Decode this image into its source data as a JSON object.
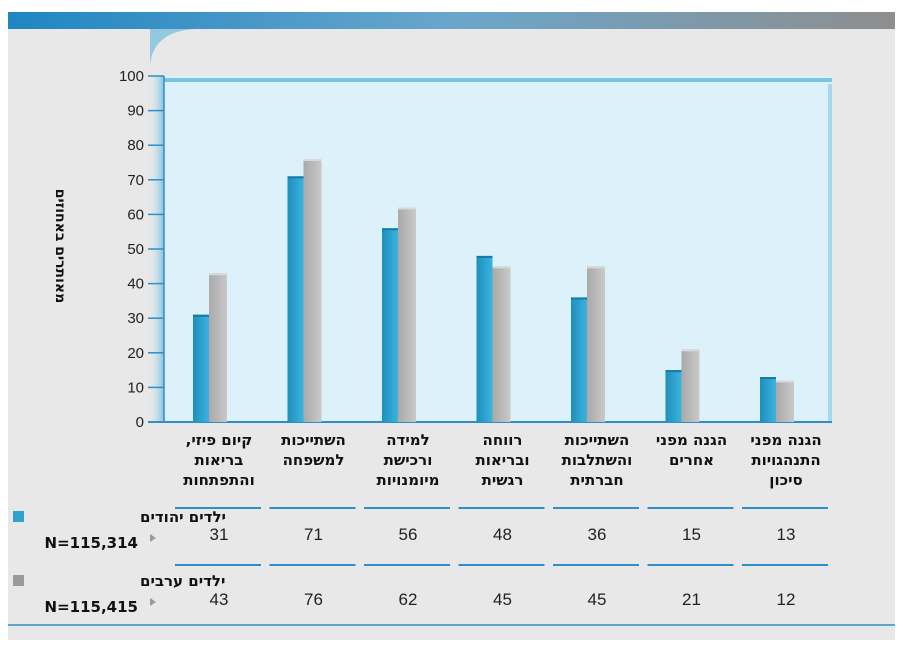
{
  "colors": {
    "jewish": "#2da3cc",
    "arab": "#b8b8b8",
    "top_band_start": "#1f86c2",
    "top_band_end": "#909090",
    "panel_bg": "#e8e8e8",
    "plot_bg": "#dcf1fa",
    "rule": "#2f8ec8"
  },
  "chart_data": {
    "type": "bar",
    "ylabel": "מאותרים באחוזים",
    "ylim": [
      0,
      100
    ],
    "yticks": [
      0,
      10,
      20,
      30,
      40,
      50,
      60,
      70,
      80,
      90,
      100
    ],
    "categories": [
      [
        "קיום פיזי,",
        "בריאות",
        "והתפתחות"
      ],
      [
        "השתייכות",
        "למשפחה"
      ],
      [
        "למידה",
        "ורכישת",
        "מיומנויות"
      ],
      [
        "רווחה",
        "ובריאות",
        "רגשית"
      ],
      [
        "השתייכות",
        "והשתלבות",
        "חברתית"
      ],
      [
        "הגנה מפני",
        "אחרים"
      ],
      [
        "הגנה מפני",
        "התנהגויות",
        "סיכון"
      ]
    ],
    "series": [
      {
        "name": "ילדים יהודים",
        "n_label": "N=115,314",
        "values": [
          31,
          71,
          56,
          48,
          36,
          15,
          13
        ]
      },
      {
        "name": "ילדים ערבים",
        "n_label": "N=115,415",
        "values": [
          43,
          76,
          62,
          45,
          45,
          21,
          12
        ]
      }
    ]
  }
}
